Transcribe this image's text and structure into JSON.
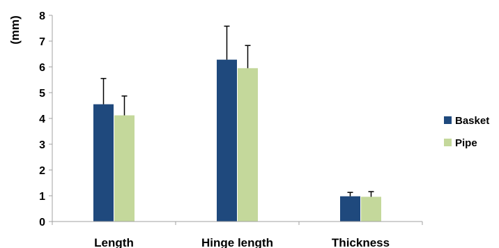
{
  "chart_data": {
    "type": "bar",
    "title": "",
    "xlabel": "",
    "ylabel": "(mm)",
    "ylim": [
      0,
      8
    ],
    "yticks": [
      0,
      1,
      2,
      3,
      4,
      5,
      6,
      7,
      8
    ],
    "grid": false,
    "legend_position": "right",
    "categories": [
      "Length",
      "Hinge length",
      "Thickness"
    ],
    "series": [
      {
        "name": "Basket",
        "color": "#1f497d",
        "values": [
          4.55,
          6.28,
          0.98
        ],
        "errors": [
          1.0,
          1.3,
          0.15
        ]
      },
      {
        "name": "Pipe",
        "color": "#c4d89b",
        "values": [
          4.12,
          5.95,
          0.96
        ],
        "errors": [
          0.75,
          0.88,
          0.2
        ]
      }
    ],
    "error_bar_color": "#000000",
    "axis_color": "#a0a0a0"
  }
}
